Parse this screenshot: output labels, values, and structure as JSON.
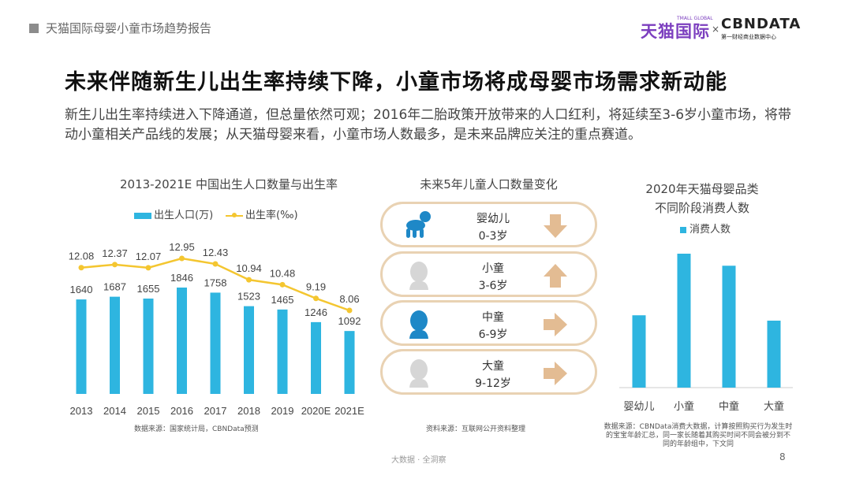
{
  "header": {
    "report_title": "天猫国际母婴小童市场趋势报告",
    "logo_tmall": "天猫国际",
    "logo_tmall_sub": "TMALL GLOBAL",
    "logo_x": "×",
    "logo_cbn": "CBNDATA",
    "logo_cbn_sub": "第一财经商业数据中心"
  },
  "title": "未来伴随新生儿出生率持续下降，小童市场将成母婴市场需求新动能",
  "subtitle": "新生儿出生率持续进入下降通道，但总量依然可观；2016年二胎政策开放带来的人口红利，将延续至3-6岁小童市场，将带动小童相关产品线的发展；从天猫母婴来看，小童市场人数最多，是未来品牌应关注的重点赛道。",
  "chart_data": [
    {
      "type": "bar",
      "title": "2013-2021E 中国出生人口数量与出生率",
      "categories": [
        "2013",
        "2014",
        "2015",
        "2016",
        "2017",
        "2018",
        "2019",
        "2020E",
        "2021E"
      ],
      "series": [
        {
          "name": "出生人口(万)",
          "type": "bar",
          "values": [
            1640,
            1687,
            1655,
            1846,
            1758,
            1523,
            1465,
            1246,
            1092
          ],
          "labels": [
            "1640",
            "1687",
            "1655",
            "1846",
            "1758",
            "1523",
            "1465",
            "1246",
            "1092"
          ],
          "color": "#2eb5e0"
        },
        {
          "name": "出生率(‰)",
          "type": "line",
          "values": [
            12.08,
            12.37,
            12.07,
            12.95,
            12.43,
            10.94,
            10.48,
            9.19,
            8.06
          ],
          "labels": [
            "12.08",
            "12.37",
            "12.07",
            "12.95",
            "12.43",
            "10.94",
            "10.48",
            "9.19",
            "8.06"
          ],
          "color": "#f4c630"
        }
      ],
      "source": "数据来源：国家统计局，CBNData预测"
    },
    {
      "type": "bar",
      "title": "2020年天猫母婴品类不同阶段消费人数",
      "title_lines": [
        "2020年天猫母婴品类",
        "不同阶段消费人数"
      ],
      "categories": [
        "婴幼儿",
        "小童",
        "中童",
        "大童"
      ],
      "series": [
        {
          "name": "消费人数",
          "values": [
            0.54,
            1.0,
            0.91,
            0.5
          ],
          "color": "#2eb5e0"
        }
      ],
      "source_lines": [
        "数据来源：CBNData消费大数据，计算按照购买行为发生时",
        "的宝宝年龄汇总，同一家长随着其购买时间不同会被分到不",
        "同的年龄组中，下文同"
      ]
    }
  ],
  "middle": {
    "title": "未来5年儿童人口数量变化",
    "items": [
      {
        "name": "婴幼儿",
        "age": "0-3岁",
        "trend": "down",
        "icon": "crawling-baby-icon",
        "icon_color": "#1e88c7"
      },
      {
        "name": "小童",
        "age": "3-6岁",
        "trend": "up",
        "icon": "child-head-icon",
        "icon_color": "#d6d6d6"
      },
      {
        "name": "中童",
        "age": "6-9岁",
        "trend": "right",
        "icon": "child-head-icon",
        "icon_color": "#1e88c7"
      },
      {
        "name": "大童",
        "age": "9-12岁",
        "trend": "right",
        "icon": "child-head-icon",
        "icon_color": "#d6d6d6"
      }
    ],
    "arrow_color": "#e3bc93",
    "source": "资料来源：互联网公开资料整理"
  },
  "footer": {
    "text": "大数据 · 全洞察",
    "page": "8"
  }
}
